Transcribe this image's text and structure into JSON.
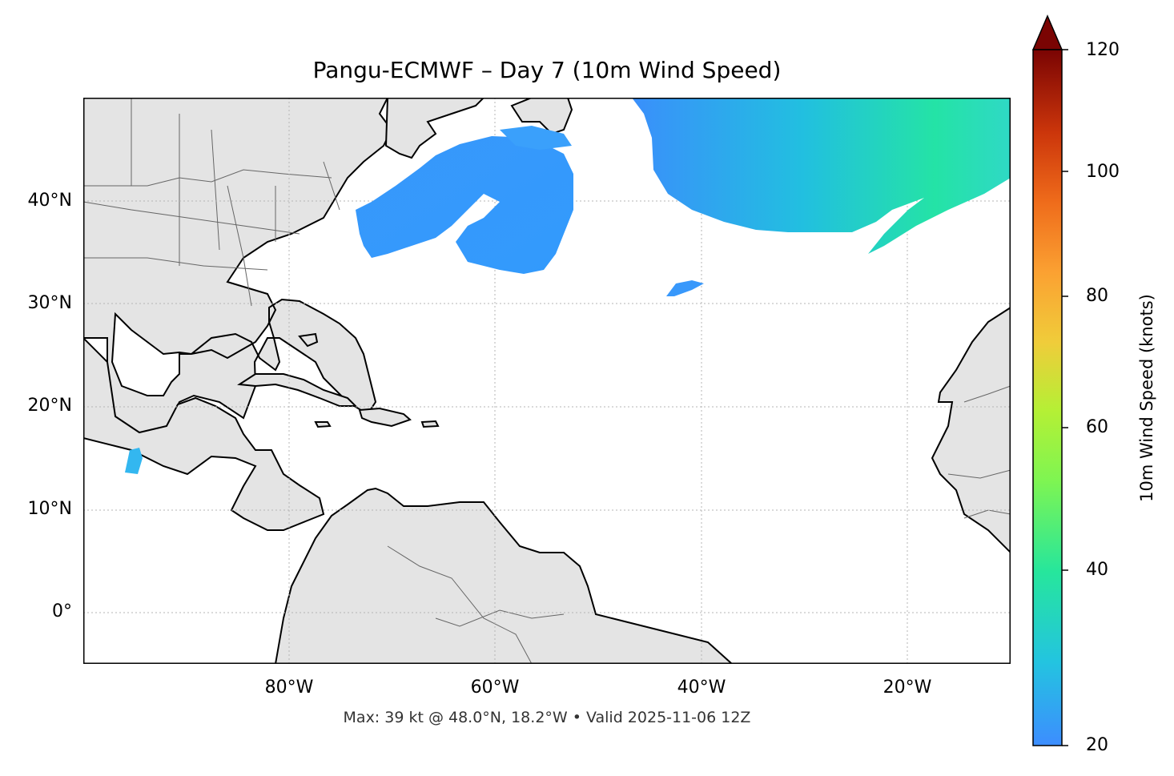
{
  "title": "Pangu-ECMWF – Day 7 (10m Wind Speed)",
  "footer": "Max: 39 kt @ 48.0°N, 18.2°W • Valid 2025-11-06 12Z",
  "axes": {
    "lat_ticks": [
      "40°N",
      "30°N",
      "20°N",
      "10°N",
      "0°"
    ],
    "lon_ticks": [
      "80°W",
      "60°W",
      "40°W",
      "20°W"
    ]
  },
  "colorbar": {
    "label": "10m Wind Speed (knots)",
    "ticks": [
      "120",
      "100",
      "80",
      "60",
      "40",
      "20"
    ],
    "range": [
      20,
      120
    ],
    "extend": "max"
  },
  "colors": {
    "land": "#e4e4e4",
    "ocean": "#ffffff",
    "coast": "#000000",
    "borders": "#666666",
    "wind_low": "#3a8ffb",
    "wind_mid": "#22cfd6",
    "wind_high": "#2ef08c"
  },
  "chart_data": {
    "type": "heatmap",
    "title": "Pangu-ECMWF – Day 7 (10m Wind Speed)",
    "xlabel": "",
    "ylabel": "",
    "xlim": [
      -100,
      -10
    ],
    "ylim": [
      -5,
      50
    ],
    "colorbar_range": [
      20,
      120
    ],
    "max_value_kt": 39,
    "max_location": {
      "lat": 48.0,
      "lon": -18.2
    }
  }
}
